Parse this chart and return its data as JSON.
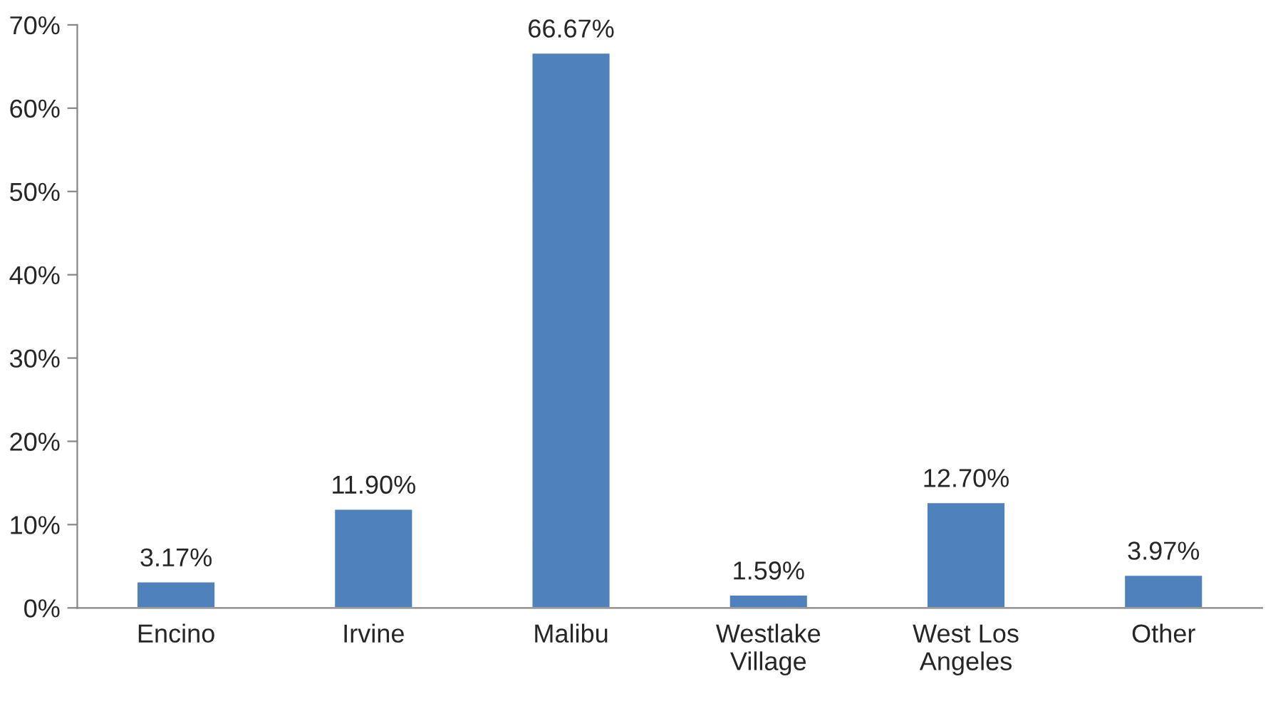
{
  "chart_data": {
    "type": "bar",
    "categories": [
      "Encino",
      "Irvine",
      "Malibu",
      "Westlake\nVillage",
      "West Los\nAngeles",
      "Other"
    ],
    "values": [
      3.17,
      11.9,
      66.67,
      1.59,
      12.7,
      3.97
    ],
    "value_labels": [
      "3.17%",
      "11.90%",
      "66.67%",
      "1.59%",
      "12.70%",
      "3.97%"
    ],
    "color": "#4f81bd",
    "ylim": [
      0,
      70
    ],
    "yticks": [
      {
        "value": 0,
        "label": "0%"
      },
      {
        "value": 10,
        "label": "10%"
      },
      {
        "value": 20,
        "label": "20%"
      },
      {
        "value": 30,
        "label": "30%"
      },
      {
        "value": 40,
        "label": "40%"
      },
      {
        "value": 50,
        "label": "50%"
      },
      {
        "value": 60,
        "label": "60%"
      },
      {
        "value": 70,
        "label": "70%"
      }
    ],
    "grid": false,
    "legend": false
  }
}
